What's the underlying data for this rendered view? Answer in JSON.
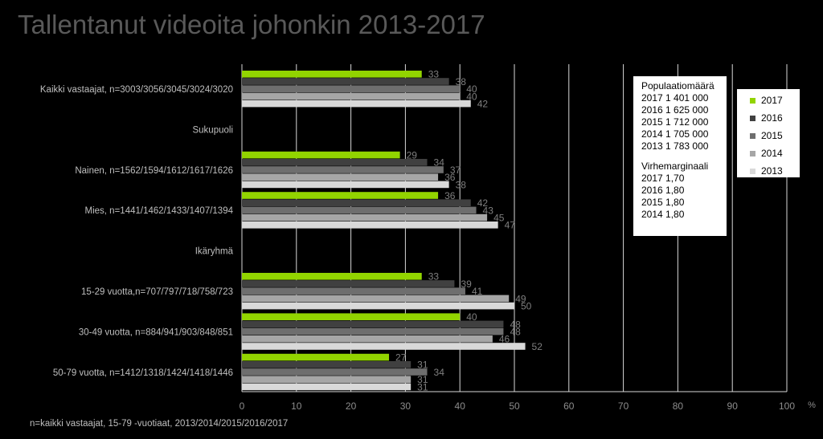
{
  "title": "Tallentanut videoita johonkin 2013-2017",
  "footnote": "n=kaikki vastaajat, 15-79 -vuotiaat, 2013/2014/2015/2016/2017",
  "population_box": {
    "heading": "Populaatiomäärä",
    "population": [
      "2017  1 401 000",
      "2016  1 625 000",
      "2015  1 712 000",
      "2014  1 705 000",
      "2013  1 783 000"
    ],
    "margin_heading": "Virhemarginaali",
    "margins": [
      "2017  1,70",
      "2016  1,80",
      "2015  1,80",
      "2014  1,80"
    ]
  },
  "chart_data": {
    "type": "bar",
    "orientation": "horizontal",
    "categories": [
      "Kaikki vastaajat, n=3003/3056/3045/3024/3020",
      "Sukupuoli",
      "Nainen, n=1562/1594/1612/1617/1626",
      "Mies, n=1441/1462/1433/1407/1394",
      "Ikäryhmä",
      "15-29 vuotta,n=707/797/718/758/723",
      "30-49 vuotta, n=884/941/903/848/851",
      "50-79 vuotta, n=1412/1318/1424/1418/1446"
    ],
    "series": [
      {
        "name": "2017",
        "color": "#92d400",
        "values": [
          33,
          null,
          29,
          36,
          null,
          33,
          40,
          27
        ]
      },
      {
        "name": "2016",
        "color": "#404040",
        "values": [
          38,
          null,
          34,
          42,
          null,
          39,
          48,
          31
        ]
      },
      {
        "name": "2015",
        "color": "#6e6e6e",
        "values": [
          40,
          null,
          37,
          43,
          null,
          41,
          48,
          34
        ]
      },
      {
        "name": "2014",
        "color": "#a6a6a6",
        "values": [
          40,
          null,
          36,
          45,
          null,
          49,
          46,
          31
        ]
      },
      {
        "name": "2013",
        "color": "#d9d9d9",
        "values": [
          42,
          null,
          38,
          47,
          null,
          50,
          52,
          31
        ]
      }
    ],
    "xlim": [
      0,
      100
    ],
    "xticks": [
      "0",
      "10",
      "20",
      "30",
      "40",
      "50",
      "60",
      "70",
      "80",
      "90",
      "100"
    ],
    "xunit": "%",
    "grid": true,
    "legend_position": "right"
  }
}
